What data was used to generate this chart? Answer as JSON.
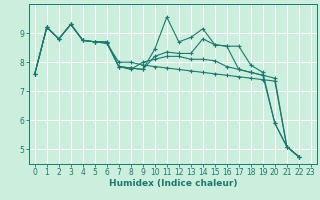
{
  "xlabel": "Humidex (Indice chaleur)",
  "ylabel": "",
  "xlim": [
    -0.5,
    23.5
  ],
  "ylim": [
    4.5,
    10.0
  ],
  "background_color": "#cceedd",
  "grid_color": "#ffffff",
  "line_color": "#1a7a6e",
  "series": [
    [
      7.6,
      9.2,
      8.8,
      9.3,
      8.75,
      8.7,
      8.7,
      7.85,
      7.8,
      7.75,
      8.45,
      9.55,
      8.7,
      8.85,
      9.15,
      8.6,
      8.55,
      8.55,
      7.9,
      7.65,
      5.9,
      5.1,
      4.75
    ],
    [
      7.6,
      9.2,
      8.8,
      9.3,
      8.75,
      8.7,
      8.7,
      7.85,
      7.8,
      7.75,
      8.2,
      8.35,
      8.3,
      8.3,
      8.8,
      8.6,
      8.55,
      7.75,
      7.65,
      7.55,
      5.9,
      5.1,
      4.75
    ],
    [
      7.6,
      9.2,
      8.8,
      9.3,
      8.75,
      8.7,
      8.65,
      7.85,
      7.75,
      8.0,
      8.1,
      8.2,
      8.2,
      8.1,
      8.1,
      8.05,
      7.85,
      7.75,
      7.65,
      7.55,
      7.45,
      5.1,
      4.75
    ],
    [
      7.6,
      9.2,
      8.8,
      9.3,
      8.75,
      8.7,
      8.65,
      8.0,
      8.0,
      7.9,
      7.85,
      7.8,
      7.75,
      7.7,
      7.65,
      7.6,
      7.55,
      7.5,
      7.45,
      7.4,
      7.35,
      5.1,
      4.75
    ]
  ],
  "xticks": [
    0,
    1,
    2,
    3,
    4,
    5,
    6,
    7,
    8,
    9,
    10,
    11,
    12,
    13,
    14,
    15,
    16,
    17,
    18,
    19,
    20,
    21,
    22,
    23
  ],
  "yticks": [
    5,
    6,
    7,
    8,
    9
  ],
  "tick_fontsize": 5.5,
  "label_fontsize": 6.5
}
